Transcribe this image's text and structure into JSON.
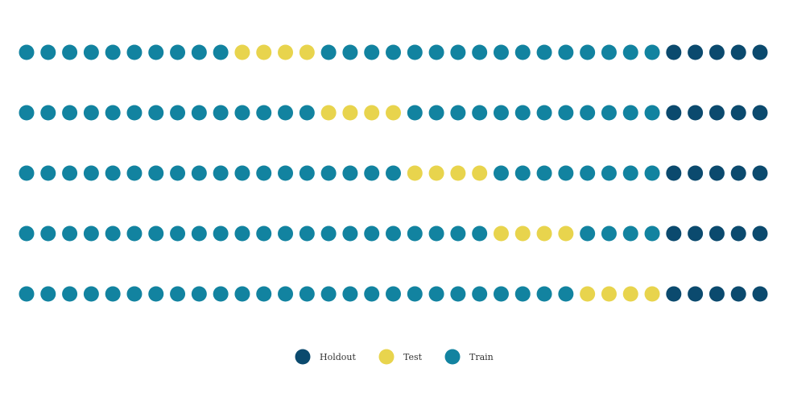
{
  "chart_data": {
    "type": "scatter",
    "title": "",
    "xlabel": "",
    "ylabel": "",
    "grid": false,
    "legend_position": "bottom-center",
    "colors": {
      "Holdout": "#0b4a6e",
      "Test": "#e8d44d",
      "Train": "#1283a0"
    },
    "legend": [
      "Holdout",
      "Test",
      "Train"
    ],
    "points_per_row": 35,
    "rows": [
      {
        "test_start": 10,
        "test_end": 13,
        "holdout_start": 30
      },
      {
        "test_start": 14,
        "test_end": 17,
        "holdout_start": 30
      },
      {
        "test_start": 18,
        "test_end": 21,
        "holdout_start": 30
      },
      {
        "test_start": 22,
        "test_end": 25,
        "holdout_start": 30
      },
      {
        "test_start": 26,
        "test_end": 29,
        "holdout_start": 30
      }
    ]
  }
}
